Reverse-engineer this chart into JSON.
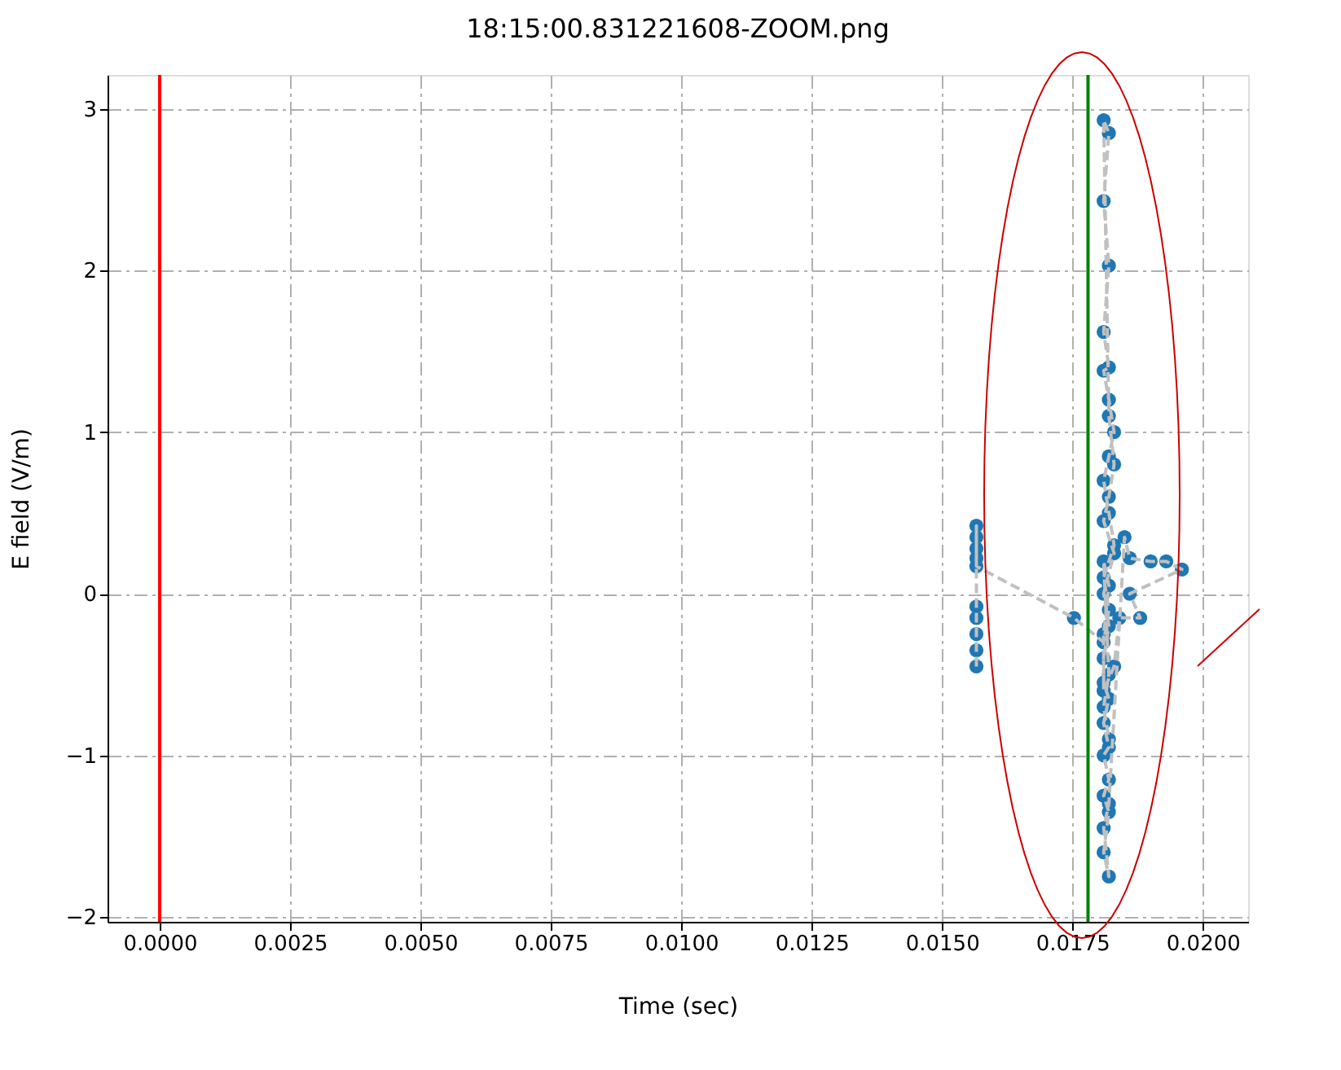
{
  "chart_data": {
    "type": "scatter",
    "title": "18:15:00.831221608-ZOOM.png",
    "xlabel": "Time (sec)",
    "ylabel": "E field (V/m)",
    "xlim": [
      -0.001,
      0.02087
    ],
    "ylim": [
      -2.03,
      3.21
    ],
    "xticks": [
      {
        "value": 0,
        "label": "0.0000"
      },
      {
        "value": 0.0025,
        "label": "0.0025"
      },
      {
        "value": 0.005,
        "label": "0.0050"
      },
      {
        "value": 0.0075,
        "label": "0.0075"
      },
      {
        "value": 0.01,
        "label": "0.0100"
      },
      {
        "value": 0.0125,
        "label": "0.0125"
      },
      {
        "value": 0.015,
        "label": "0.0150"
      },
      {
        "value": 0.0175,
        "label": "0.0175"
      },
      {
        "value": 0.02,
        "label": "0.0200"
      }
    ],
    "yticks": [
      {
        "value": -2,
        "label": "−2"
      },
      {
        "value": -1,
        "label": "−1"
      },
      0,
      1,
      2,
      3
    ],
    "grid": true,
    "series": [
      {
        "color": "#1f77b4",
        "marker": "circle",
        "x": [
          0.01566,
          0.01566,
          0.01566,
          0.01566,
          0.01566,
          0.01566,
          0.01566,
          0.01566,
          0.01566,
          0.01566,
          0.01753,
          0.0181,
          0.0182,
          0.0181,
          0.0183,
          0.0182,
          0.0181,
          0.0182,
          0.0183,
          0.0182,
          0.0181,
          0.0182,
          0.0181,
          0.0182,
          0.0181,
          0.0182,
          0.0181,
          0.0182,
          0.0183,
          0.0182,
          0.0181,
          0.0183,
          0.0181,
          0.0182,
          0.0181,
          0.0181,
          0.0182,
          0.0181,
          0.0182,
          0.0181,
          0.0182,
          0.0181,
          0.0182,
          0.0181,
          0.0182,
          0.0181,
          0.0182,
          0.0185,
          0.0186,
          0.019,
          0.0193,
          0.0196,
          0.0186,
          0.0188,
          0.0184,
          0.0183,
          0.0181,
          0.0181,
          0.0182,
          0.0181,
          0.0182,
          0.0181,
          0.0182
        ],
        "values": [
          -0.45,
          -0.35,
          -0.25,
          -0.15,
          -0.08,
          0.42,
          0.35,
          0.28,
          0.22,
          0.17,
          -0.15,
          -0.3,
          -0.1,
          0.1,
          0.3,
          0.5,
          0.7,
          0.85,
          1.0,
          1.2,
          1.38,
          1.4,
          1.62,
          2.03,
          2.43,
          2.85,
          2.93,
          1.1,
          0.8,
          0.6,
          0.45,
          0.25,
          0.0,
          -0.2,
          -0.4,
          -0.55,
          -0.65,
          -0.8,
          -0.95,
          -1.0,
          -1.15,
          -1.25,
          -1.35,
          -1.6,
          -1.75,
          -1.45,
          -1.3,
          0.35,
          0.22,
          0.2,
          0.2,
          0.15,
          0.0,
          -0.15,
          -0.15,
          -0.45,
          -0.6,
          -0.25,
          0.05,
          0.2,
          -0.5,
          -0.7,
          -0.9
        ]
      },
      {
        "type": "line",
        "color": "#c0c0c0",
        "line_style": "dashed",
        "x": [
          0.01566,
          0.01566,
          0.01566,
          0.01566,
          0.01566,
          0.01566,
          0.01566,
          0.01566,
          0.01566,
          0.01566,
          0.01753,
          0.0181,
          0.0182,
          0.0181,
          0.0183,
          0.0182,
          0.0181,
          0.0182,
          0.0183,
          0.0182,
          0.0181,
          0.0182,
          0.0181,
          0.0182,
          0.0181,
          0.0182,
          0.0181,
          0.0182,
          0.0183,
          0.0182,
          0.0181,
          0.0183,
          0.0181,
          0.0182,
          0.0181,
          0.0181,
          0.0182,
          0.0181,
          0.0182,
          0.0181,
          0.0182,
          0.0181,
          0.0182,
          0.0181,
          0.0182,
          0.0181,
          0.0182,
          0.0185,
          0.0186,
          0.019,
          0.0193,
          0.0196,
          0.0186,
          0.0188,
          0.0184,
          0.0183,
          0.0181,
          0.0181,
          0.0182,
          0.0181,
          0.0182,
          0.0181,
          0.0182
        ],
        "values": [
          -0.45,
          -0.35,
          -0.25,
          -0.15,
          -0.08,
          0.42,
          0.35,
          0.28,
          0.22,
          0.17,
          -0.15,
          -0.3,
          -0.1,
          0.1,
          0.3,
          0.5,
          0.7,
          0.85,
          1.0,
          1.2,
          1.38,
          1.4,
          1.62,
          2.03,
          2.43,
          2.85,
          2.93,
          1.1,
          0.8,
          0.6,
          0.45,
          0.25,
          0.0,
          -0.2,
          -0.4,
          -0.55,
          -0.65,
          -0.8,
          -0.95,
          -1.0,
          -1.15,
          -1.25,
          -1.35,
          -1.6,
          -1.75,
          -1.45,
          -1.3,
          0.35,
          0.22,
          0.2,
          0.2,
          0.15,
          0.0,
          -0.15,
          -0.15,
          -0.45,
          -0.6,
          -0.25,
          0.05,
          0.2,
          -0.5,
          -0.7,
          -0.9
        ]
      }
    ],
    "ref_lines": [
      {
        "axis": "x",
        "value": 0,
        "color": "#ff0000"
      },
      {
        "axis": "x",
        "value": 0.0178,
        "color": "#008000"
      }
    ]
  }
}
